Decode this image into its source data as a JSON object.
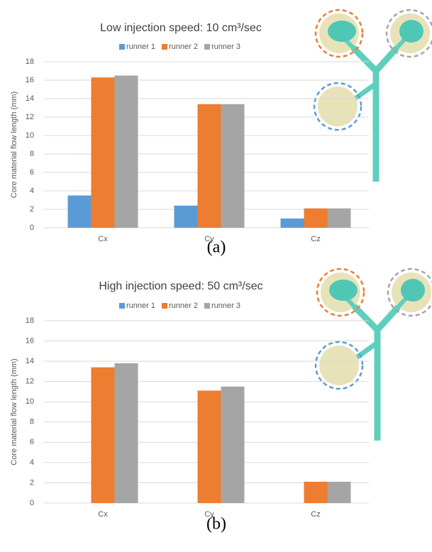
{
  "chart_data": [
    {
      "type": "bar",
      "title": "Low injection speed: 10 cm³/sec",
      "y_label": "Core material flow length (mm)",
      "caption": "(a)",
      "categories": [
        "Cx",
        "Cy",
        "Cz"
      ],
      "series": [
        {
          "name": "runner 1",
          "color": "#5b9bd5",
          "values": [
            3.5,
            2.4,
            1.0
          ]
        },
        {
          "name": "runner 2",
          "color": "#ed7d31",
          "values": [
            16.3,
            13.4,
            2.1
          ]
        },
        {
          "name": "runner 3",
          "color": "#a5a5a5",
          "values": [
            16.5,
            13.4,
            2.1
          ]
        }
      ],
      "ylim": [
        0,
        18
      ],
      "yticks": [
        0,
        2,
        4,
        6,
        8,
        10,
        12,
        14,
        16,
        18
      ],
      "grid": true,
      "legend": "top"
    },
    {
      "type": "bar",
      "title": "High injection speed: 50 cm³/sec",
      "y_label": "Core material flow length (mm)",
      "caption": "(b)",
      "categories": [
        "Cx",
        "Cy",
        "Cz"
      ],
      "series": [
        {
          "name": "runner 1",
          "color": "#5b9bd5",
          "values": [
            0,
            0,
            0
          ]
        },
        {
          "name": "runner 2",
          "color": "#ed7d31",
          "values": [
            13.4,
            11.1,
            2.1
          ]
        },
        {
          "name": "runner 3",
          "color": "#a5a5a5",
          "values": [
            13.8,
            11.5,
            2.1
          ]
        }
      ],
      "ylim": [
        0,
        18
      ],
      "yticks": [
        0,
        2,
        4,
        6,
        8,
        10,
        12,
        14,
        16,
        18
      ],
      "grid": true,
      "legend": "top"
    }
  ]
}
